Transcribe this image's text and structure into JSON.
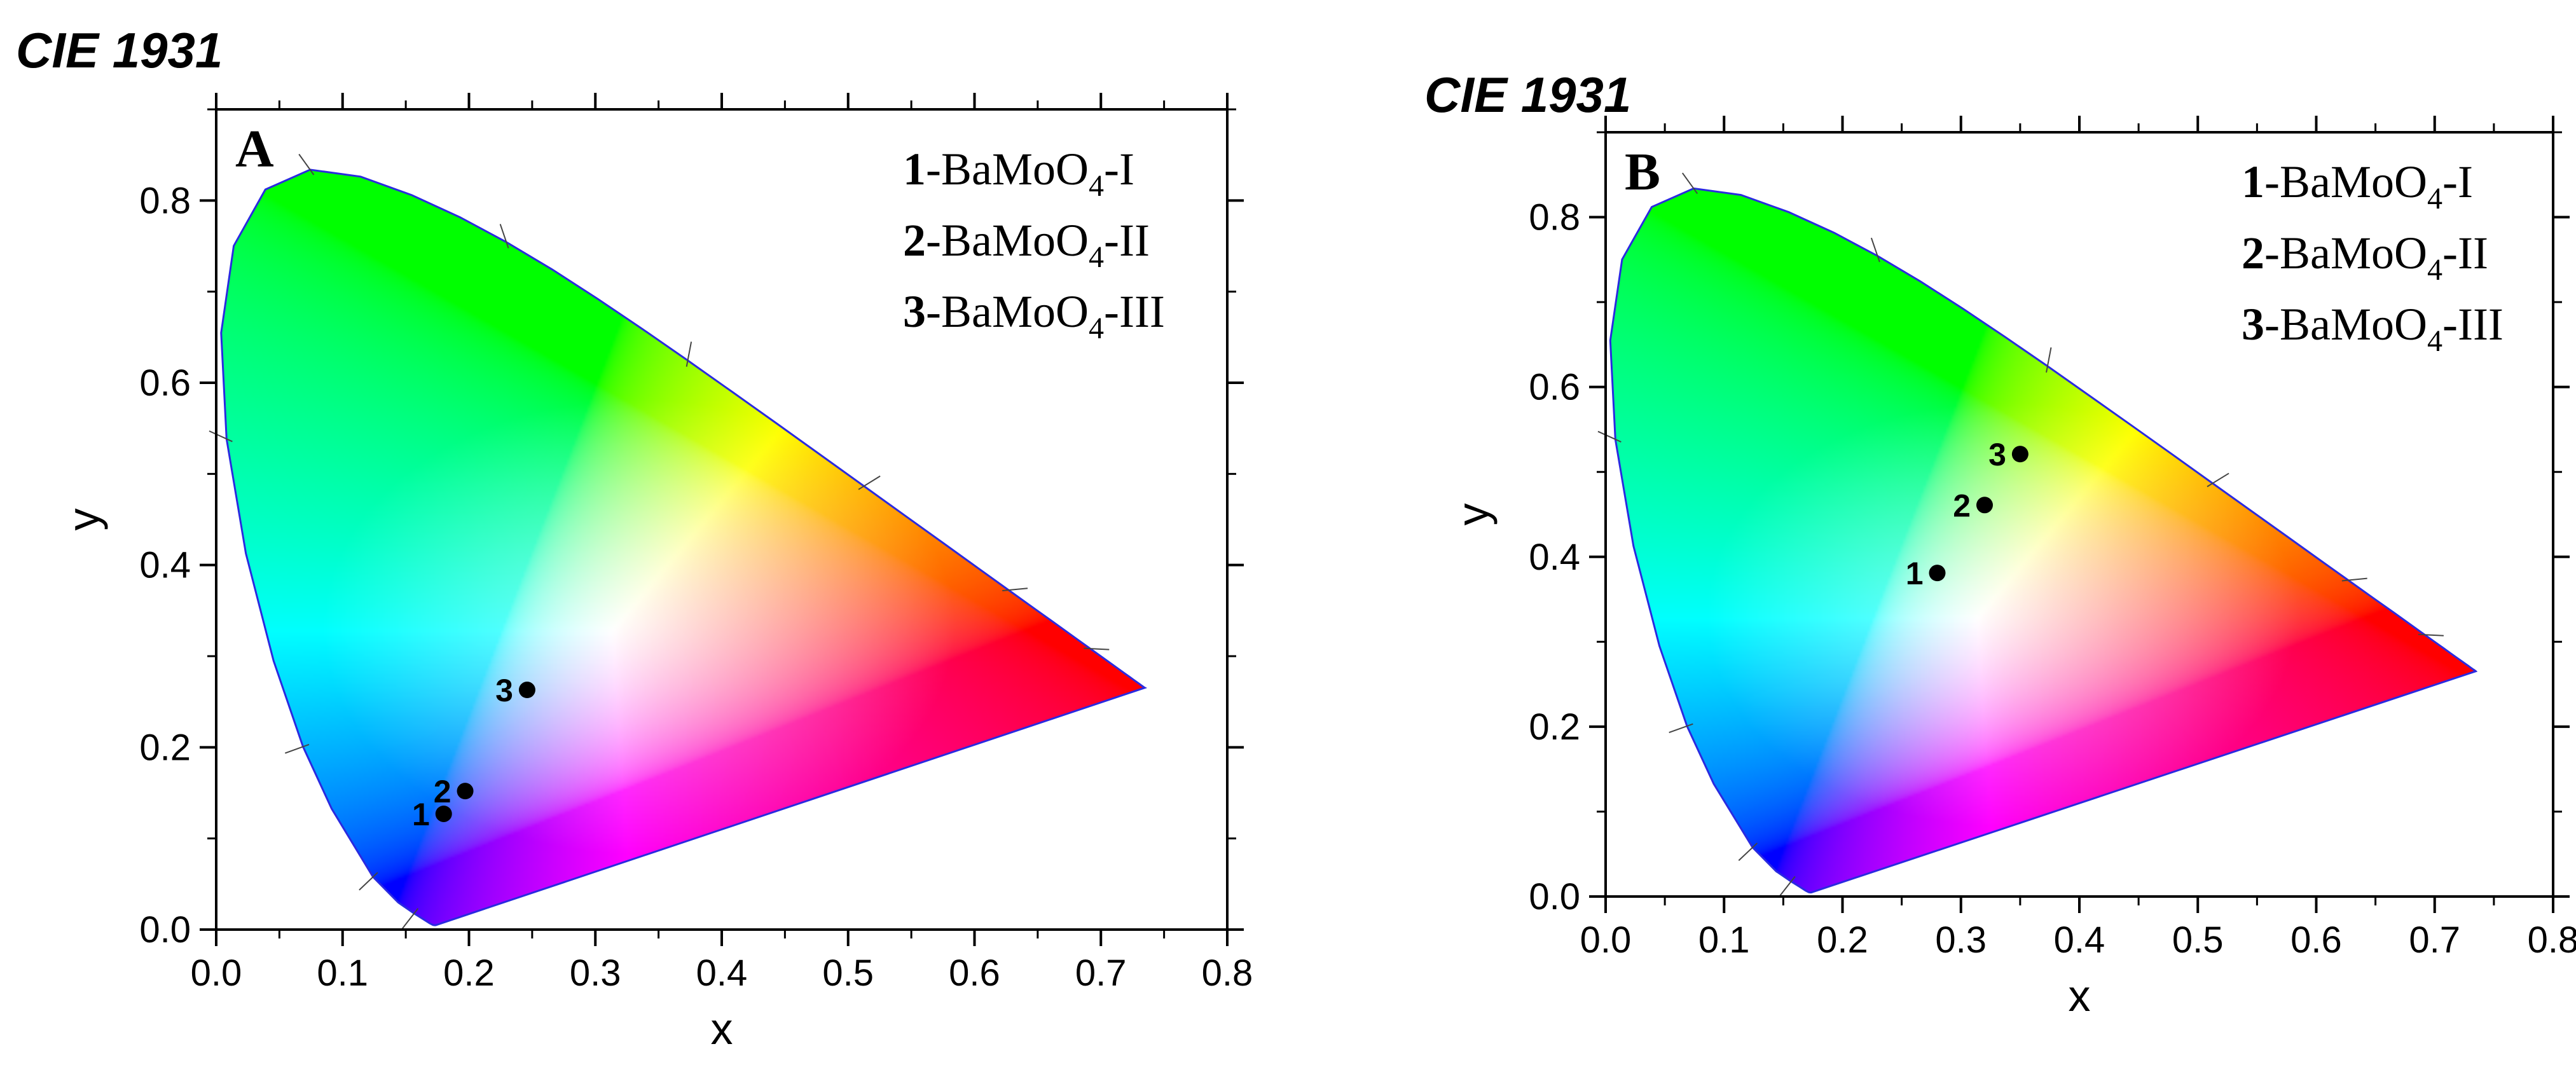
{
  "figure": {
    "panels": [
      "A",
      "B"
    ]
  },
  "chart_data": [
    {
      "type": "scatter",
      "title": "CIE 1931",
      "panel_label": "A",
      "xlabel": "x",
      "ylabel": "y",
      "xlim": [
        0.0,
        0.8
      ],
      "ylim": [
        0.0,
        0.9
      ],
      "x_ticks": [
        "0.0",
        "0.1",
        "0.2",
        "0.3",
        "0.4",
        "0.5",
        "0.6",
        "0.7",
        "0.8"
      ],
      "y_ticks": [
        "0.0",
        "0.2",
        "0.4",
        "0.6",
        "0.8"
      ],
      "legend": [
        {
          "num": "1",
          "pre": "-BaMoO",
          "sub": "4",
          "post": "-I"
        },
        {
          "num": "2",
          "pre": "-BaMoO",
          "sub": "4",
          "post": "-II"
        },
        {
          "num": "3",
          "pre": "-BaMoO",
          "sub": "4",
          "post": "-III"
        }
      ],
      "legend_position": "top-right",
      "points": [
        {
          "label": "1",
          "x": 0.18,
          "y": 0.127
        },
        {
          "label": "2",
          "x": 0.197,
          "y": 0.152
        },
        {
          "label": "3",
          "x": 0.246,
          "y": 0.263
        }
      ]
    },
    {
      "type": "scatter",
      "title": "CIE 1931",
      "panel_label": "B",
      "xlabel": "x",
      "ylabel": "y",
      "xlim": [
        0.0,
        0.8
      ],
      "ylim": [
        0.0,
        0.9
      ],
      "x_ticks": [
        "0.0",
        "0.1",
        "0.2",
        "0.3",
        "0.4",
        "0.5",
        "0.6",
        "0.7",
        "0.8"
      ],
      "y_ticks": [
        "0.0",
        "0.2",
        "0.4",
        "0.6",
        "0.8"
      ],
      "legend": [
        {
          "num": "1",
          "pre": "-BaMoO",
          "sub": "4",
          "post": "-I"
        },
        {
          "num": "2",
          "pre": "-BaMoO",
          "sub": "4",
          "post": "-II"
        },
        {
          "num": "3",
          "pre": "-BaMoO",
          "sub": "4",
          "post": "-III"
        }
      ],
      "legend_position": "top-right",
      "points": [
        {
          "label": "1",
          "x": 0.28,
          "y": 0.381
        },
        {
          "label": "2",
          "x": 0.32,
          "y": 0.461
        },
        {
          "label": "3",
          "x": 0.35,
          "y": 0.521
        }
      ]
    }
  ],
  "locus": [
    [
      0.1741,
      0.005
    ],
    [
      0.1738,
      0.0049
    ],
    [
      0.1733,
      0.0048
    ],
    [
      0.1726,
      0.0048
    ],
    [
      0.1714,
      0.0051
    ],
    [
      0.1689,
      0.0069
    ],
    [
      0.1644,
      0.0109
    ],
    [
      0.1566,
      0.0177
    ],
    [
      0.144,
      0.0297
    ],
    [
      0.1241,
      0.0578
    ],
    [
      0.0913,
      0.1327
    ],
    [
      0.0687,
      0.2007
    ],
    [
      0.0454,
      0.295
    ],
    [
      0.0235,
      0.4127
    ],
    [
      0.0082,
      0.5384
    ],
    [
      0.0039,
      0.6548
    ],
    [
      0.0139,
      0.7502
    ],
    [
      0.0389,
      0.812
    ],
    [
      0.0743,
      0.8338
    ],
    [
      0.1142,
      0.8262
    ],
    [
      0.1547,
      0.8059
    ],
    [
      0.1929,
      0.7816
    ],
    [
      0.2296,
      0.7543
    ],
    [
      0.2658,
      0.7243
    ],
    [
      0.3016,
      0.6923
    ],
    [
      0.3373,
      0.6589
    ],
    [
      0.3731,
      0.6245
    ],
    [
      0.4087,
      0.5896
    ],
    [
      0.4441,
      0.5547
    ],
    [
      0.4788,
      0.5202
    ],
    [
      0.5125,
      0.4866
    ],
    [
      0.5448,
      0.4544
    ],
    [
      0.5752,
      0.4242
    ],
    [
      0.6029,
      0.3965
    ],
    [
      0.627,
      0.3725
    ],
    [
      0.6482,
      0.3514
    ],
    [
      0.6658,
      0.334
    ],
    [
      0.6801,
      0.3197
    ],
    [
      0.6915,
      0.3083
    ],
    [
      0.7006,
      0.2993
    ],
    [
      0.7079,
      0.292
    ],
    [
      0.714,
      0.2859
    ],
    [
      0.719,
      0.2809
    ],
    [
      0.723,
      0.277
    ],
    [
      0.726,
      0.274
    ],
    [
      0.7283,
      0.2717
    ],
    [
      0.73,
      0.27
    ],
    [
      0.7311,
      0.2689
    ],
    [
      0.732,
      0.268
    ],
    [
      0.7327,
      0.2673
    ],
    [
      0.7334,
      0.2666
    ],
    [
      0.734,
      0.266
    ],
    [
      0.7344,
      0.2656
    ],
    [
      0.7346,
      0.2654
    ],
    [
      0.7347,
      0.2653
    ]
  ],
  "locus_ticks": [
    [
      0.1566,
      0.0177
    ],
    [
      0.1241,
      0.0578
    ],
    [
      0.0687,
      0.2007
    ],
    [
      0.0082,
      0.5384
    ],
    [
      0.0743,
      0.8338
    ],
    [
      0.2296,
      0.7543
    ],
    [
      0.3731,
      0.6245
    ],
    [
      0.5125,
      0.4866
    ],
    [
      0.627,
      0.3725
    ],
    [
      0.6915,
      0.3083
    ]
  ],
  "colors": {
    "locus_outline": "#2a2ae0",
    "point": "#000000",
    "axis": "#000000"
  }
}
